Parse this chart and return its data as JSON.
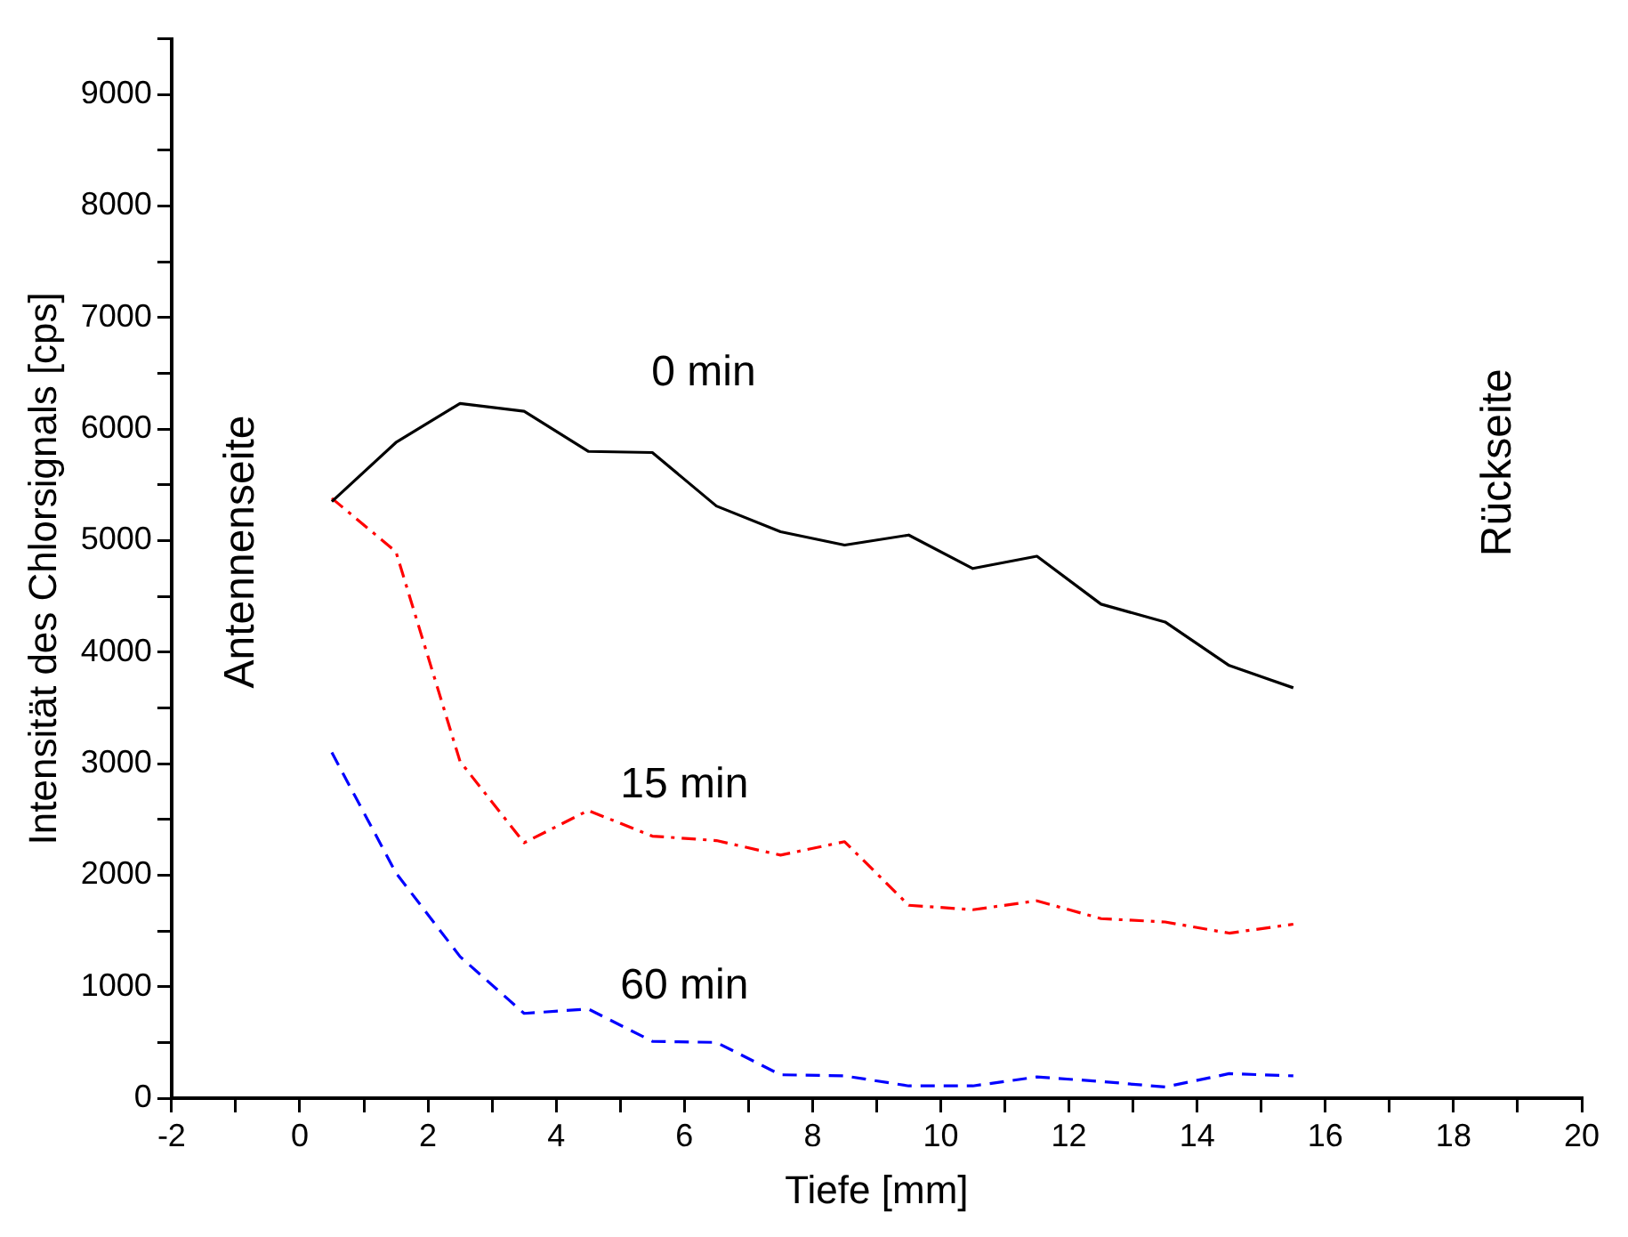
{
  "chart_data": {
    "type": "line",
    "xlabel": "Tiefe [mm]",
    "ylabel": "Intensität des Chlorsignals [cps]",
    "x": [
      0.5,
      1.5,
      2.5,
      3.5,
      4.5,
      5.5,
      6.5,
      7.5,
      8.5,
      9.5,
      10.5,
      11.5,
      12.5,
      13.5,
      14.5,
      15.5
    ],
    "series": [
      {
        "name": "0 min",
        "color": "#000000",
        "line_style": "solid",
        "values": [
          5350,
          5880,
          6230,
          6160,
          5800,
          5790,
          5310,
          5080,
          4960,
          5050,
          4750,
          4860,
          4430,
          4270,
          3880,
          3680
        ]
      },
      {
        "name": "15 min",
        "color": "#ff0000",
        "line_style": "dashdot",
        "values": [
          5380,
          4900,
          3020,
          2290,
          2580,
          2350,
          2310,
          2180,
          2300,
          1730,
          1690,
          1770,
          1610,
          1580,
          1480,
          1560
        ]
      },
      {
        "name": "60 min",
        "color": "#0000ff",
        "line_style": "dashed",
        "values": [
          3100,
          2020,
          1270,
          760,
          800,
          510,
          500,
          210,
          200,
          110,
          110,
          190,
          150,
          100,
          220,
          200
        ]
      }
    ],
    "annotations": [
      "Antennenseite",
      "Rückseite"
    ],
    "xlim": [
      -2,
      20
    ],
    "xticks": [
      -2,
      {
        "value": -1,
        "label": null
      },
      0,
      {
        "value": 1,
        "label": null
      },
      2,
      {
        "value": 3,
        "label": null
      },
      4,
      {
        "value": 5,
        "label": null
      },
      6,
      {
        "value": 7,
        "label": null
      },
      8,
      {
        "value": 9,
        "label": null
      },
      10,
      {
        "value": 11,
        "label": null
      },
      12,
      {
        "value": 13,
        "label": null
      },
      14,
      {
        "value": 15,
        "label": null
      },
      16,
      {
        "value": 17,
        "label": null
      },
      18,
      {
        "value": 19,
        "label": null
      },
      20
    ],
    "ylim": [
      0,
      9500
    ],
    "yticks": [
      0,
      {
        "value": 500,
        "label": null
      },
      1000,
      {
        "value": 1500,
        "label": null
      },
      2000,
      {
        "value": 2500,
        "label": null
      },
      3000,
      {
        "value": 3500,
        "label": null
      },
      4000,
      {
        "value": 4500,
        "label": null
      },
      5000,
      {
        "value": 5500,
        "label": null
      },
      6000,
      {
        "value": 6500,
        "label": null
      },
      7000,
      {
        "value": 7500,
        "label": null
      },
      8000,
      {
        "value": 8500,
        "label": null
      },
      9000,
      {
        "value": 9500,
        "label": null
      }
    ],
    "grid": false,
    "legend": false,
    "marker": "none"
  }
}
